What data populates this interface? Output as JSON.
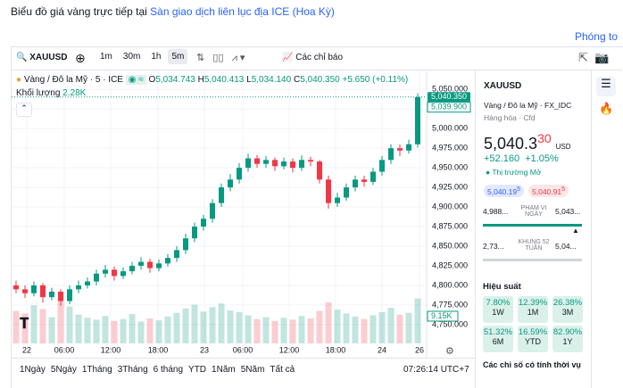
{
  "header": {
    "title": "Biểu đồ giá vàng trực tiếp tại",
    "link": "Sàn giao dịch liên lục địa ICE (Hoa Kỳ)",
    "expand": "Phóng to"
  },
  "toolbar": {
    "symbol": "XAUUSD",
    "intervals": [
      "1m",
      "30m",
      "1h",
      "5m"
    ],
    "selected": 3,
    "indicators": "Các chỉ báo"
  },
  "legend": {
    "name": "Vàng / Đô la Mỹ · 5 · ICE",
    "o_label": "O",
    "o": "5,034.743",
    "h_label": "H",
    "h": "5,040.413",
    "l_label": "L",
    "l": "5,034.140",
    "c_label": "C",
    "c": "5,040.350",
    "change": "+5.650 (+0.11%)",
    "volume_label": "Khối lượng",
    "volume": "2.28K"
  },
  "chart_data": {
    "type": "candlestick",
    "up_color": "#089981",
    "down_color": "#f23645",
    "candles": [
      [
        4800,
        4806,
        4790,
        4795
      ],
      [
        4795,
        4800,
        4784,
        4790
      ],
      [
        4790,
        4805,
        4786,
        4800
      ],
      [
        4800,
        4803,
        4778,
        4785
      ],
      [
        4785,
        4797,
        4781,
        4792
      ],
      [
        4792,
        4795,
        4774,
        4780
      ],
      [
        4780,
        4800,
        4776,
        4795
      ],
      [
        4795,
        4806,
        4790,
        4800
      ],
      [
        4800,
        4810,
        4796,
        4805
      ],
      [
        4805,
        4820,
        4800,
        4815
      ],
      [
        4815,
        4826,
        4810,
        4820
      ],
      [
        4820,
        4824,
        4806,
        4812
      ],
      [
        4812,
        4823,
        4808,
        4818
      ],
      [
        4818,
        4830,
        4814,
        4825
      ],
      [
        4825,
        4836,
        4820,
        4830
      ],
      [
        4830,
        4834,
        4816,
        4822
      ],
      [
        4822,
        4833,
        4818,
        4828
      ],
      [
        4828,
        4840,
        4824,
        4835
      ],
      [
        4835,
        4850,
        4830,
        4845
      ],
      [
        4845,
        4866,
        4840,
        4860
      ],
      [
        4860,
        4880,
        4855,
        4875
      ],
      [
        4875,
        4890,
        4870,
        4885
      ],
      [
        4885,
        4910,
        4880,
        4905
      ],
      [
        4905,
        4930,
        4900,
        4925
      ],
      [
        4925,
        4942,
        4920,
        4935
      ],
      [
        4935,
        4956,
        4930,
        4950
      ],
      [
        4950,
        4968,
        4945,
        4962
      ],
      [
        4962,
        4966,
        4950,
        4955
      ],
      [
        4955,
        4965,
        4950,
        4960
      ],
      [
        4960,
        4963,
        4946,
        4952
      ],
      [
        4952,
        4963,
        4948,
        4958
      ],
      [
        4958,
        4962,
        4944,
        4950
      ],
      [
        4950,
        4966,
        4946,
        4960
      ],
      [
        4960,
        4964,
        4952,
        4958
      ],
      [
        4958,
        4960,
        4930,
        4935
      ],
      [
        4935,
        4940,
        4898,
        4905
      ],
      [
        4905,
        4918,
        4900,
        4912
      ],
      [
        4912,
        4930,
        4908,
        4925
      ],
      [
        4925,
        4940,
        4920,
        4935
      ],
      [
        4935,
        4940,
        4926,
        4932
      ],
      [
        4932,
        4950,
        4928,
        4945
      ],
      [
        4945,
        4965,
        4940,
        4960
      ],
      [
        4960,
        4980,
        4955,
        4975
      ],
      [
        4975,
        4980,
        4965,
        4972
      ],
      [
        4972,
        4986,
        4968,
        4980
      ],
      [
        4980,
        5045,
        4976,
        5040
      ]
    ],
    "volumes": [
      5.2,
      4.8,
      6.1,
      5.5,
      4.2,
      6.8,
      5.9,
      4.6,
      4.1,
      3.8,
      4.4,
      3.6,
      3.9,
      4.7,
      3.5,
      4.0,
      3.7,
      4.3,
      4.9,
      5.6,
      6.2,
      5.1,
      5.8,
      6.4,
      5.3,
      5.0,
      4.5,
      3.9,
      4.2,
      3.6,
      4.1,
      3.8,
      4.4,
      4.0,
      5.2,
      6.6,
      5.4,
      4.8,
      4.3,
      3.9,
      4.5,
      5.0,
      5.7,
      4.6,
      4.9,
      7.2
    ],
    "vlim": [
      0,
      20
    ],
    "xlim": [
      -0.6,
      46
    ],
    "xticks": [
      {
        "value": 1.2,
        "label": "22"
      },
      {
        "value": 5.4,
        "label": "06:00"
      },
      {
        "value": 10.6,
        "label": "12:00"
      },
      {
        "value": 15.9,
        "label": "18:00"
      },
      {
        "value": 21.1,
        "label": "23"
      },
      {
        "value": 25.4,
        "label": "06:00"
      },
      {
        "value": 30.6,
        "label": "12:00"
      },
      {
        "value": 35.8,
        "label": "18:00"
      },
      {
        "value": 41,
        "label": "24"
      },
      {
        "value": 45.2,
        "label": "26"
      }
    ],
    "ylim": [
      4726,
      5073
    ],
    "yticks": [
      {
        "value": 5050,
        "label": "5,050.000"
      },
      {
        "value": 5025,
        "label": "5,025.000"
      },
      {
        "value": 5000,
        "label": "5,000.000"
      },
      {
        "value": 4975,
        "label": "4,975.000"
      },
      {
        "value": 4950,
        "label": "4,950.000"
      },
      {
        "value": 4925,
        "label": "4,925.000"
      },
      {
        "value": 4900,
        "label": "4,900.000"
      },
      {
        "value": 4875,
        "label": "4,875.000"
      },
      {
        "value": 4850,
        "label": "4,850.000"
      },
      {
        "value": 4825,
        "label": "4,825.000"
      },
      {
        "value": 4800,
        "label": "4,800.000"
      },
      {
        "value": 4775,
        "label": "4,775.000"
      },
      {
        "value": 4750,
        "label": "4,750.000"
      }
    ],
    "last_price": {
      "value": 5040.35,
      "label": "5,040.350"
    },
    "bid_label": "5,039.900",
    "volume_scale": "9.15K",
    "grid": true
  },
  "ranges": [
    "1Ngày",
    "5Ngày",
    "1Tháng",
    "3Tháng",
    "6 tháng",
    "YTD",
    "1Năm",
    "5Năm",
    "Tất cả"
  ],
  "clock": "07:26:14 UTC+7",
  "sidebar": {
    "symbol": "XAUUSD",
    "name": "Vàng / Đô la Mỹ · FX_IDC",
    "kind": "Hàng hóa · Cfd",
    "price_main": "5,040.3",
    "price_tail": "30",
    "currency": "USD",
    "change": "+52.160",
    "change_pct": "+1.05%",
    "status": "Thị trường Mở",
    "bid_main": "5,040.19",
    "bid_tail": "5",
    "ask_main": "5,040.91",
    "ask_tail": "5",
    "day_low": "4,988...",
    "day_label": "PHẠM VI NGÀY",
    "day_high": "5,043...",
    "year_low": "2,73...",
    "year_label": "KHUNG 52 TUẦN",
    "year_high": "5,04...",
    "perf_title": "Hiệu suất",
    "perf": [
      {
        "value": "7.80%",
        "period": "1W"
      },
      {
        "value": "12.39%",
        "period": "1M"
      },
      {
        "value": "26.38%",
        "period": "3M"
      },
      {
        "value": "51.32%",
        "period": "6M"
      },
      {
        "value": "16.59%",
        "period": "YTD"
      },
      {
        "value": "82.90%",
        "period": "1Y"
      }
    ],
    "seasonal": "Các chỉ số có tính thời vụ"
  }
}
